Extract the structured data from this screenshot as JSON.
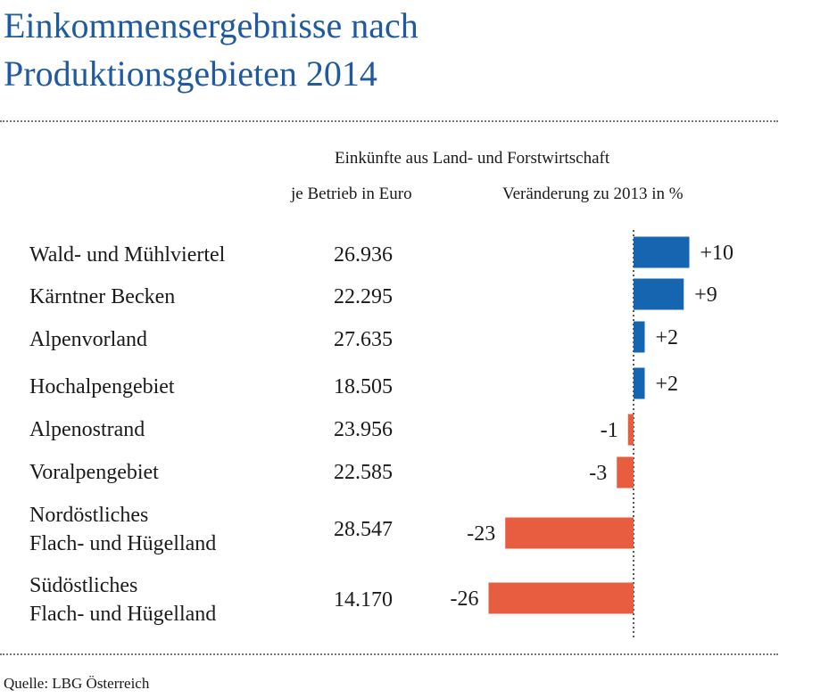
{
  "title": {
    "line1": "Einkommensergebnisse nach",
    "line2": "Produktionsgebieten 2014"
  },
  "header": {
    "group": "Einkünfte aus Land- und Forstwirtschaft",
    "col1": "je Betrieb in Euro",
    "col2": "Veränderung zu 2013 in %"
  },
  "rows": [
    {
      "label": [
        "Wald- und Mühlviertel"
      ],
      "euro": "26.936"
    },
    {
      "label": [
        "Kärntner Becken"
      ],
      "euro": "22.295"
    },
    {
      "label": [
        "Alpenvorland"
      ],
      "euro": "27.635"
    },
    {
      "label": [
        "Hochalpengebiet"
      ],
      "euro": "18.505"
    },
    {
      "label": [
        "Alpenostrand"
      ],
      "euro": "23.956"
    },
    {
      "label": [
        "Voralpengebiet"
      ],
      "euro": "22.585"
    },
    {
      "label": [
        "Nordöstliches",
        "Flach- und Hügelland"
      ],
      "euro": "28.547"
    },
    {
      "label": [
        "Südöstliches",
        "Flach- und Hügelland"
      ],
      "euro": "14.170"
    }
  ],
  "chart_data": {
    "type": "bar",
    "orientation": "horizontal",
    "title": "Einkommensergebnisse nach Produktionsgebieten 2014",
    "categories": [
      "Wald- und Mühlviertel",
      "Kärntner Becken",
      "Alpenvorland",
      "Hochalpengebiet",
      "Alpenostrand",
      "Voralpengebiet",
      "Nordöstliches Flach- und Hügelland",
      "Südöstliches Flach- und Hügelland"
    ],
    "series": [
      {
        "name": "Veränderung zu 2013 in %",
        "values": [
          10,
          9,
          2,
          2,
          -1,
          -3,
          -23,
          -26
        ]
      }
    ],
    "value_labels": [
      "+10",
      "+9",
      "+2",
      "+2",
      "-1",
      "-3",
      "-23",
      "-26"
    ],
    "colors": {
      "positive": "#1565b0",
      "negative": "#e85c3f"
    },
    "zero_line": "dotted",
    "grid": false
  },
  "source": "Quelle: LBG Österreich"
}
